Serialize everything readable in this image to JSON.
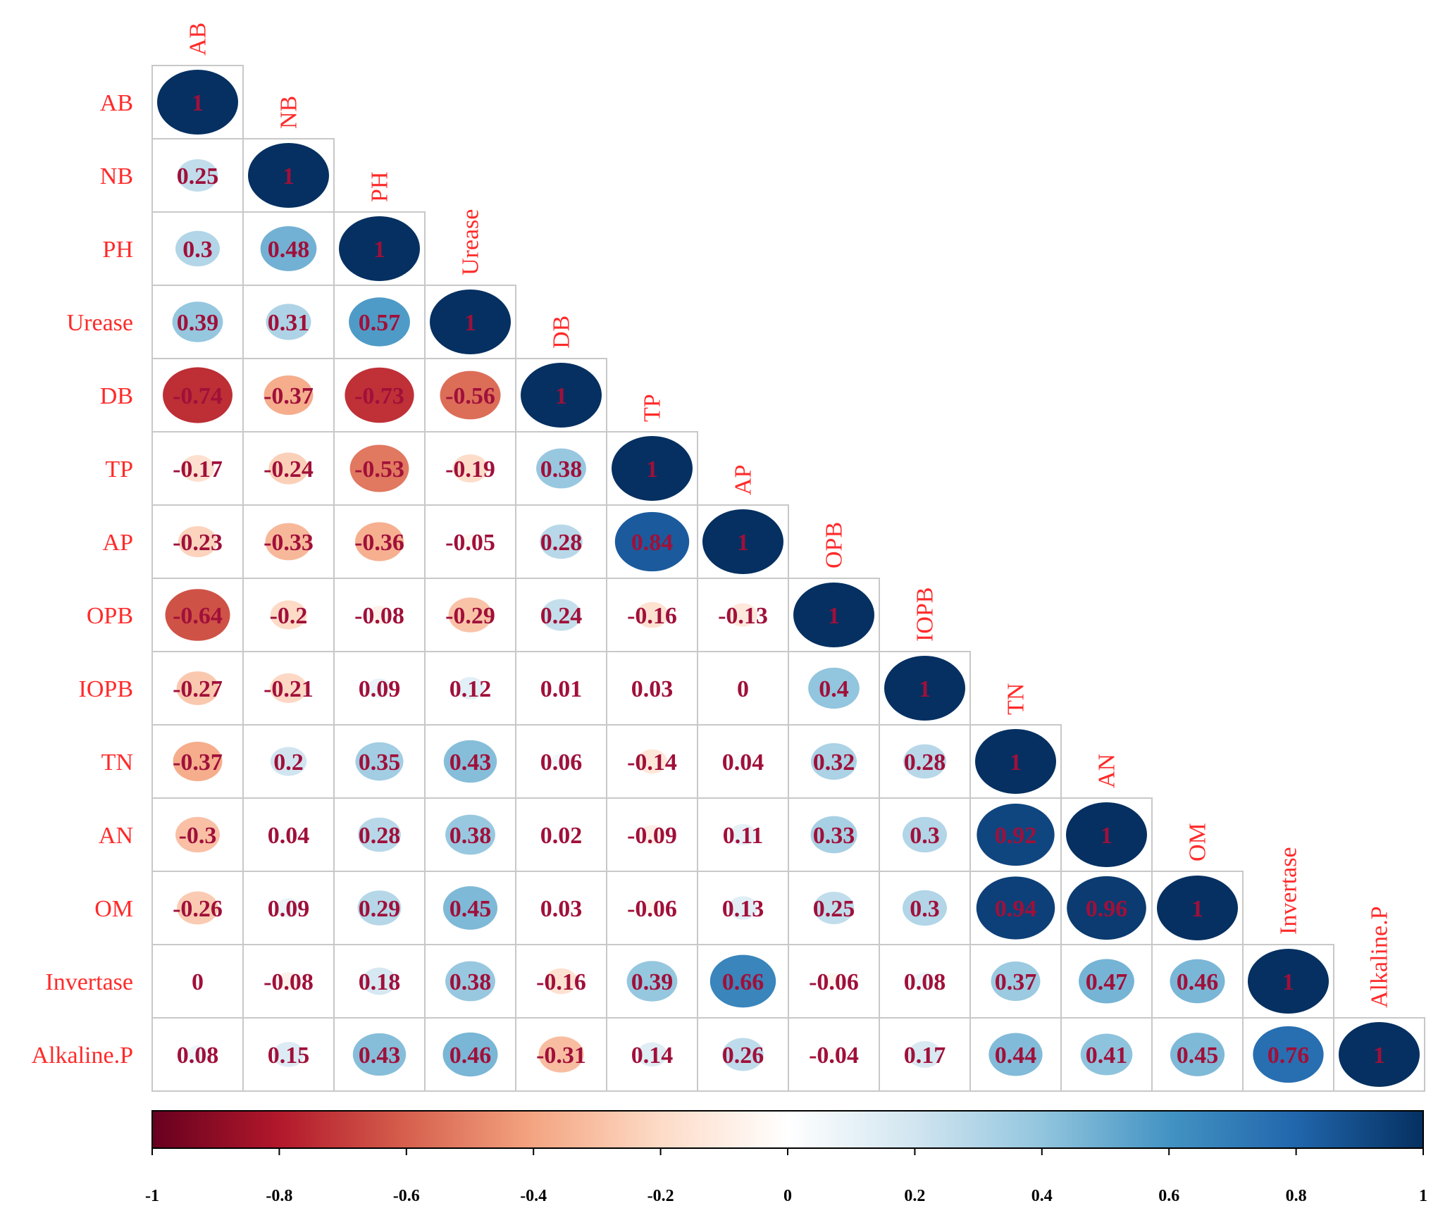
{
  "chart_data": {
    "type": "heatmap",
    "subtype": "correlation-matrix-lower-triangle",
    "title": "",
    "variables": [
      "AB",
      "NB",
      "PH",
      "Urease",
      "DB",
      "TP",
      "AP",
      "OPB",
      "IOPB",
      "TN",
      "AN",
      "OM",
      "Invertase",
      "Alkaline.P"
    ],
    "matrix": [
      [
        1
      ],
      [
        0.25,
        1
      ],
      [
        0.3,
        0.48,
        1
      ],
      [
        0.39,
        0.31,
        0.57,
        1
      ],
      [
        -0.74,
        -0.37,
        -0.73,
        -0.56,
        1
      ],
      [
        -0.17,
        -0.24,
        -0.53,
        -0.19,
        0.38,
        1
      ],
      [
        -0.23,
        -0.33,
        -0.36,
        -0.05,
        0.28,
        0.84,
        1
      ],
      [
        -0.64,
        -0.2,
        -0.08,
        -0.29,
        0.24,
        -0.16,
        -0.13,
        1
      ],
      [
        -0.27,
        -0.21,
        0.09,
        0.12,
        0.01,
        0.03,
        0,
        0.4,
        1
      ],
      [
        -0.37,
        0.2,
        0.35,
        0.43,
        0.06,
        -0.14,
        0.04,
        0.32,
        0.28,
        1
      ],
      [
        -0.3,
        0.04,
        0.28,
        0.38,
        0.02,
        -0.09,
        0.11,
        0.33,
        0.3,
        0.92,
        1
      ],
      [
        -0.26,
        0.09,
        0.29,
        0.45,
        0.03,
        -0.06,
        0.13,
        0.25,
        0.3,
        0.94,
        0.96,
        1
      ],
      [
        0,
        -0.08,
        0.18,
        0.38,
        -0.16,
        0.39,
        0.66,
        -0.06,
        0.08,
        0.37,
        0.47,
        0.46,
        1
      ],
      [
        0.08,
        0.15,
        0.43,
        0.46,
        -0.31,
        0.14,
        0.26,
        -0.04,
        0.17,
        0.44,
        0.41,
        0.45,
        0.76,
        1
      ]
    ],
    "colorbar": {
      "range": [
        -1,
        1
      ],
      "ticks": [
        "-1",
        "-0.8",
        "-0.6",
        "-0.4",
        "-0.2",
        "0",
        "0.2",
        "0.4",
        "0.6",
        "0.8",
        "1"
      ],
      "colors": [
        "#67001F",
        "#B2182B",
        "#D6604D",
        "#F4A582",
        "#FDDBC7",
        "#FFFFFF",
        "#D1E5F0",
        "#92C5DE",
        "#4393C3",
        "#2166AC",
        "#053061"
      ]
    }
  }
}
